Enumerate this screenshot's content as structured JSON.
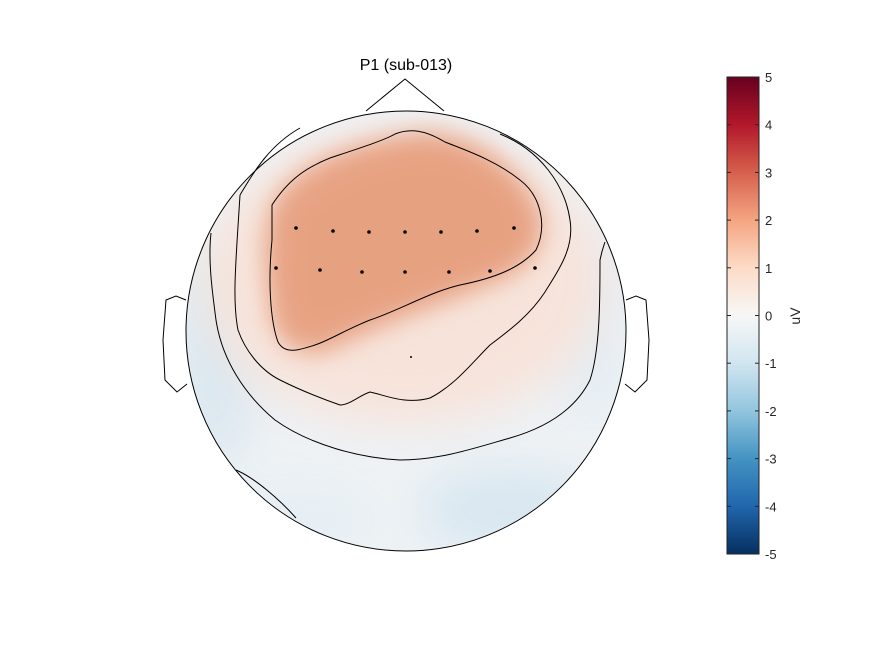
{
  "chart_data": {
    "type": "heatmap",
    "subtype": "eeg-topographic-map",
    "title": "P1 (sub-013)",
    "colorbar": {
      "label": "uV",
      "range": [
        -5,
        5
      ],
      "ticks": [
        5,
        4,
        3,
        2,
        1,
        0,
        -1,
        -2,
        -3,
        -4,
        -5
      ],
      "tick_labels": [
        "5",
        "4",
        "3",
        "2",
        "1",
        "0",
        "-1",
        "-2",
        "-3",
        "-4",
        "-5"
      ],
      "colormap": "RdBu reversed (blue = negative, red = positive)",
      "color_min": "#053061",
      "color_mid": "#f7f7f7",
      "color_max": "#67001f"
    },
    "field": {
      "frontal_peak_uV": 2.1,
      "posterior_min_uV": -0.6,
      "contour_levels_uV": [
        2,
        1,
        0,
        -0.5
      ]
    },
    "electrodes": {
      "count": 15,
      "rows": [
        {
          "row": "anterior",
          "count": 7
        },
        {
          "row": "middle",
          "count": 7
        },
        {
          "row": "central",
          "count": 1
        }
      ]
    }
  },
  "colors": {
    "outline": "#000000",
    "background": "#ffffff"
  }
}
